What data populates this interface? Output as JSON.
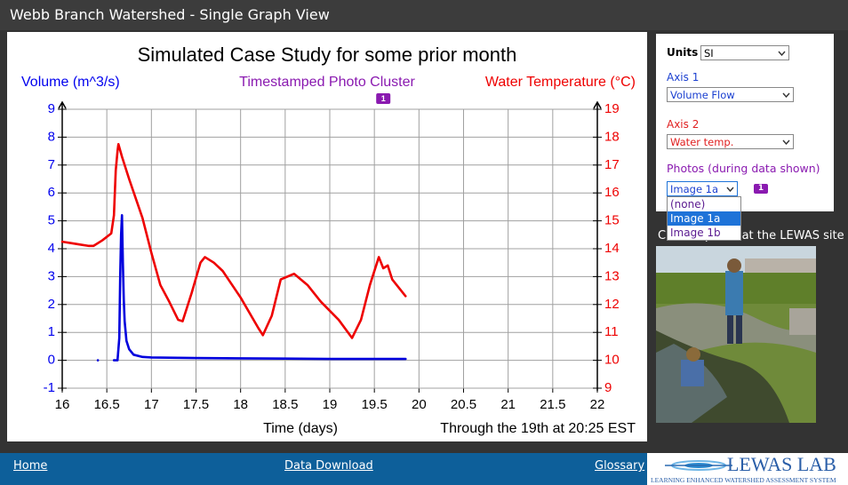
{
  "header": {
    "title": "Webb Branch Watershed - Single Graph View"
  },
  "chart_data": {
    "type": "line",
    "title": "Simulated Case Study for some prior month",
    "y_label": "Volume (m^3/s)",
    "y2_label": "Water Temperature (°C)",
    "annotation_label": "Timestamped Photo Cluster",
    "x_label": "Time (days)",
    "note": "Through the 19th at 20:25 EST",
    "xlim": [
      16,
      22
    ],
    "xticks": [
      16,
      16.5,
      17,
      17.5,
      18,
      18.5,
      19,
      19.5,
      20,
      20.5,
      21,
      21.5,
      22
    ],
    "ylim": [
      -1,
      9
    ],
    "yticks": [
      -1,
      0,
      1,
      2,
      3,
      4,
      5,
      6,
      7,
      8,
      9
    ],
    "y2lim": [
      9,
      19
    ],
    "y2ticks": [
      9,
      10,
      11,
      12,
      13,
      14,
      15,
      16,
      17,
      18,
      19
    ],
    "grid": true,
    "y_color": "#0000ee",
    "y2_color": "#ee0000",
    "annotation_color": "#8a1ab0",
    "photo_markers": [
      {
        "x": 19.6,
        "label": "1"
      }
    ],
    "series": [
      {
        "color": "#0000dd",
        "x": [
          16.4,
          16.5,
          16.58,
          16.62,
          16.64,
          16.65,
          16.66,
          16.67,
          16.68,
          16.69,
          16.7,
          16.72,
          16.75,
          16.8,
          16.9,
          17.0,
          17.5,
          18,
          18.5,
          19,
          19.5,
          19.85
        ],
        "values": [
          0,
          null,
          0,
          0,
          0.8,
          3,
          4.5,
          5.2,
          3.5,
          2.2,
          1.4,
          0.7,
          0.4,
          0.2,
          0.12,
          0.1,
          0.08,
          0.07,
          0.06,
          0.05,
          0.05,
          0.05
        ]
      },
      {
        "color": "#ee0000",
        "axis": "y2",
        "x": [
          16,
          16.1,
          16.2,
          16.3,
          16.35,
          16.45,
          16.55,
          16.58,
          16.6,
          16.62,
          16.63,
          16.67,
          16.75,
          16.9,
          17,
          17.1,
          17.2,
          17.3,
          17.35,
          17.45,
          17.55,
          17.6,
          17.7,
          17.8,
          18,
          18.2,
          18.25,
          18.35,
          18.45,
          18.6,
          18.75,
          18.9,
          19.1,
          19.25,
          19.35,
          19.45,
          19.55,
          19.6,
          19.65,
          19.7,
          19.85
        ],
        "values": [
          14.25,
          14.2,
          14.15,
          14.1,
          14.1,
          14.3,
          14.55,
          15.2,
          16.8,
          17.5,
          17.75,
          17.3,
          16.5,
          15.1,
          13.85,
          12.7,
          12.1,
          11.45,
          11.4,
          12.4,
          13.5,
          13.7,
          13.5,
          13.2,
          12.25,
          11.15,
          10.9,
          11.6,
          12.9,
          13.1,
          12.7,
          12.1,
          11.45,
          10.8,
          11.45,
          12.7,
          13.7,
          13.3,
          13.4,
          12.9,
          12.3
        ]
      }
    ]
  },
  "controls": {
    "units_label": "Units",
    "units_value": "SI",
    "axis1_label": "Axis 1",
    "axis1_value": "Volume Flow",
    "axis2_label": "Axis 2",
    "axis2_value": "Water temp.",
    "photos_label": "Photos (during data shown)",
    "photos_value": "Image 1a",
    "photo_badge": "1",
    "photo_options": [
      "(none)",
      "Image 1a",
      "Image 1b"
    ]
  },
  "photo_caption": "Current photo at the LEWAS site",
  "footer": {
    "links": [
      "Home",
      "Data Download",
      "Glossary"
    ],
    "logo": "LEWAS LAB",
    "tagline": "LEARNING ENHANCED WATERSHED ASSESSMENT SYSTEM"
  }
}
